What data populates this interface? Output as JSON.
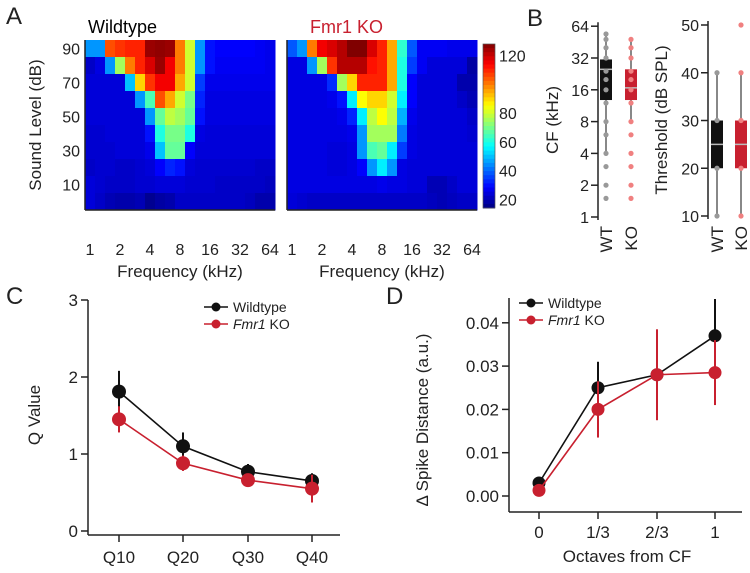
{
  "panels": {
    "a": "A",
    "b": "B",
    "c": "C",
    "d": "D"
  },
  "chart_data": [
    {
      "type": "heatmap",
      "panel": "A",
      "ylabel": "Sound Level (dB)",
      "xlabel": "Frequency (kHz)",
      "y_levels_db": [
        90,
        80,
        70,
        60,
        50,
        40,
        30,
        20,
        10,
        0
      ],
      "y_tick_labels": [
        "90",
        "70",
        "50",
        "30",
        "10"
      ],
      "x_freqs_khz": [
        1,
        1.26,
        1.59,
        2,
        2.52,
        3.17,
        4,
        5.04,
        6.35,
        8,
        10.1,
        12.7,
        16,
        20.2,
        25.4,
        32,
        40.3,
        50.8,
        64
      ],
      "x_tick_labels": [
        "1",
        "2",
        "4",
        "8",
        "16",
        "32",
        "64"
      ],
      "colorbar": {
        "min": 14,
        "max": 128,
        "ticks": [
          "120",
          "80",
          "60",
          "40",
          "20"
        ],
        "colormap": "jet"
      },
      "maps": [
        {
          "title": "Wildtype",
          "title_color": "#111111",
          "values": [
            [
              45,
              45,
              105,
              108,
              110,
              110,
              125,
              126,
              125,
              100,
              80,
              45,
              30,
              28,
              28,
              28,
              28,
              27,
              26
            ],
            [
              22,
              25,
              45,
              75,
              100,
              110,
              118,
              125,
              115,
              100,
              80,
              45,
              30,
              27,
              27,
              27,
              27,
              27,
              26
            ],
            [
              24,
              24,
              24,
              24,
              50,
              90,
              108,
              115,
              115,
              95,
              80,
              35,
              26,
              26,
              26,
              26,
              26,
              26,
              26
            ],
            [
              24,
              24,
              24,
              24,
              24,
              45,
              65,
              105,
              95,
              80,
              70,
              32,
              25,
              25,
              25,
              25,
              25,
              25,
              25
            ],
            [
              24,
              24,
              24,
              24,
              24,
              24,
              45,
              68,
              78,
              75,
              68,
              30,
              25,
              25,
              25,
              25,
              25,
              25,
              25
            ],
            [
              23,
              23,
              24,
              24,
              24,
              24,
              30,
              60,
              70,
              70,
              60,
              25,
              24,
              24,
              24,
              24,
              24,
              24,
              24
            ],
            [
              23,
              23,
              23,
              24,
              24,
              24,
              26,
              50,
              68,
              68,
              28,
              24,
              24,
              24,
              24,
              24,
              24,
              24,
              24
            ],
            [
              22,
              23,
              23,
              22,
              22,
              23,
              24,
              28,
              32,
              30,
              24,
              23,
              23,
              23,
              23,
              23,
              23,
              22,
              22
            ],
            [
              24,
              23,
              22,
              22,
              22,
              23,
              23,
              24,
              24,
              24,
              23,
              23,
              23,
              22,
              22,
              22,
              22,
              22,
              21
            ],
            [
              24,
              22,
              20,
              19,
              19,
              20,
              16,
              18,
              19,
              22,
              22,
              22,
              22,
              22,
              22,
              22,
              21,
              19,
              19
            ]
          ]
        },
        {
          "title": "Fmr1 KO",
          "title_color": "#c8202f",
          "values": [
            [
              38,
              45,
              100,
              115,
              118,
              122,
              128,
              128,
              118,
              110,
              95,
              62,
              38,
              27,
              27,
              27,
              26,
              26,
              26
            ],
            [
              25,
              25,
              45,
              75,
              108,
              122,
              122,
              122,
              112,
              110,
              95,
              60,
              35,
              27,
              24,
              24,
              24,
              24,
              18
            ],
            [
              25,
              25,
              25,
              25,
              33,
              75,
              90,
              110,
              110,
              110,
              95,
              60,
              28,
              24,
              24,
              24,
              24,
              19,
              19
            ],
            [
              25,
              25,
              25,
              25,
              26,
              30,
              55,
              85,
              90,
              90,
              80,
              55,
              28,
              24,
              24,
              24,
              24,
              22,
              20
            ],
            [
              25,
              25,
              25,
              25,
              25,
              26,
              32,
              55,
              78,
              85,
              78,
              48,
              26,
              24,
              24,
              24,
              24,
              24,
              22
            ],
            [
              25,
              25,
              25,
              25,
              25,
              25,
              26,
              45,
              75,
              75,
              75,
              42,
              25,
              24,
              24,
              24,
              24,
              24,
              23
            ],
            [
              25,
              25,
              25,
              25,
              24,
              24,
              25,
              45,
              65,
              68,
              55,
              35,
              25,
              24,
              24,
              24,
              24,
              24,
              24
            ],
            [
              25,
              25,
              25,
              25,
              24,
              24,
              25,
              28,
              45,
              55,
              45,
              25,
              24,
              24,
              24,
              24,
              24,
              24,
              24
            ],
            [
              25,
              25,
              25,
              25,
              25,
              25,
              25,
              25,
              25,
              26,
              25,
              25,
              24,
              24,
              20,
              20,
              22,
              24,
              24
            ],
            [
              24,
              23,
              22,
              22,
              22,
              22,
              22,
              22,
              22,
              22,
              22,
              22,
              22,
              22,
              21,
              20,
              21,
              22,
              22
            ]
          ]
        }
      ]
    },
    {
      "type": "box",
      "panel": "B-left",
      "ylabel": "CF  (kHz)",
      "yscale": "log2",
      "y_ticks": [
        1,
        2,
        4,
        8,
        16,
        32,
        64
      ],
      "categories": [
        "WT",
        "KO"
      ],
      "boxes": [
        {
          "name": "WT",
          "color": "#111111",
          "dot_color": "#999999",
          "q1": 12.8,
          "median": 25,
          "q3": 31,
          "whisker_low": 4,
          "whisker_high": 54,
          "points": [
            1.5,
            2,
            3,
            4,
            6,
            8,
            12,
            16,
            20,
            24,
            32,
            40,
            48,
            54
          ]
        },
        {
          "name": "KO",
          "color": "#c8202f",
          "dot_color": "#f08080",
          "q1": 12.8,
          "median": 16.7,
          "q3": 25,
          "whisker_low": 8.4,
          "whisker_high": 48,
          "points": [
            1.5,
            2,
            3,
            4,
            6,
            8,
            12,
            16,
            20,
            24,
            32,
            40,
            48
          ]
        }
      ]
    },
    {
      "type": "box",
      "panel": "B-right",
      "ylabel": "Threshold (dB SPL)",
      "y_ticks": [
        10,
        20,
        30,
        40,
        50
      ],
      "ylim": [
        10,
        50
      ],
      "categories": [
        "WT",
        "KO"
      ],
      "boxes": [
        {
          "name": "WT",
          "color": "#111111",
          "dot_color": "#999999",
          "q1": 20,
          "median": 25,
          "q3": 30,
          "whisker_low": 10,
          "whisker_high": 40,
          "points": [
            10,
            20,
            30,
            40
          ]
        },
        {
          "name": "KO",
          "color": "#c8202f",
          "dot_color": "#f08080",
          "q1": 20,
          "median": 25,
          "q3": 30,
          "whisker_low": 10,
          "whisker_high": 40,
          "points": [
            10,
            20,
            30,
            40,
            50
          ]
        }
      ]
    },
    {
      "type": "line",
      "panel": "C",
      "ylabel": "Q Value",
      "xlabel": "",
      "categories": [
        "Q10",
        "Q20",
        "Q30",
        "Q40"
      ],
      "y_ticks": [
        "0",
        "1",
        "2",
        "3"
      ],
      "ylim": [
        0,
        3
      ],
      "legend": "top-right",
      "series": [
        {
          "name": "Wildtype",
          "italic_part": "",
          "rest": "Wildtype",
          "color": "#111111",
          "values": [
            1.81,
            1.1,
            0.77,
            0.65
          ],
          "err": [
            0.27,
            0.18,
            0.1,
            0.1
          ]
        },
        {
          "name": "Fmr1 KO",
          "italic_part": "Fmr1",
          "rest": " KO",
          "color": "#c8202f",
          "values": [
            1.45,
            0.88,
            0.66,
            0.55
          ],
          "err": [
            0.17,
            0.1,
            0.07,
            0.18
          ]
        }
      ]
    },
    {
      "type": "line",
      "panel": "D",
      "ylabel": "Δ Spike Distance (a.u.)",
      "xlabel": "Octaves from CF",
      "categories": [
        "0",
        "1/3",
        "2/3",
        "1"
      ],
      "y_ticks": [
        "0.00",
        "0.01",
        "0.02",
        "0.03",
        "0.04"
      ],
      "ylim": [
        0,
        0.045
      ],
      "legend": "top-left",
      "series": [
        {
          "name": "Wildtype",
          "italic_part": "",
          "rest": "Wildtype",
          "color": "#111111",
          "values": [
            0.003,
            0.025,
            0.028,
            0.037
          ],
          "err": [
            0.001,
            0.006,
            0.0075,
            0.0085
          ]
        },
        {
          "name": "Fmr1 KO",
          "italic_part": "Fmr1",
          "rest": " KO",
          "color": "#c8202f",
          "values": [
            0.0013,
            0.02,
            0.028,
            0.0285
          ],
          "err": [
            0.0008,
            0.0065,
            0.0105,
            0.0075
          ]
        }
      ]
    }
  ]
}
